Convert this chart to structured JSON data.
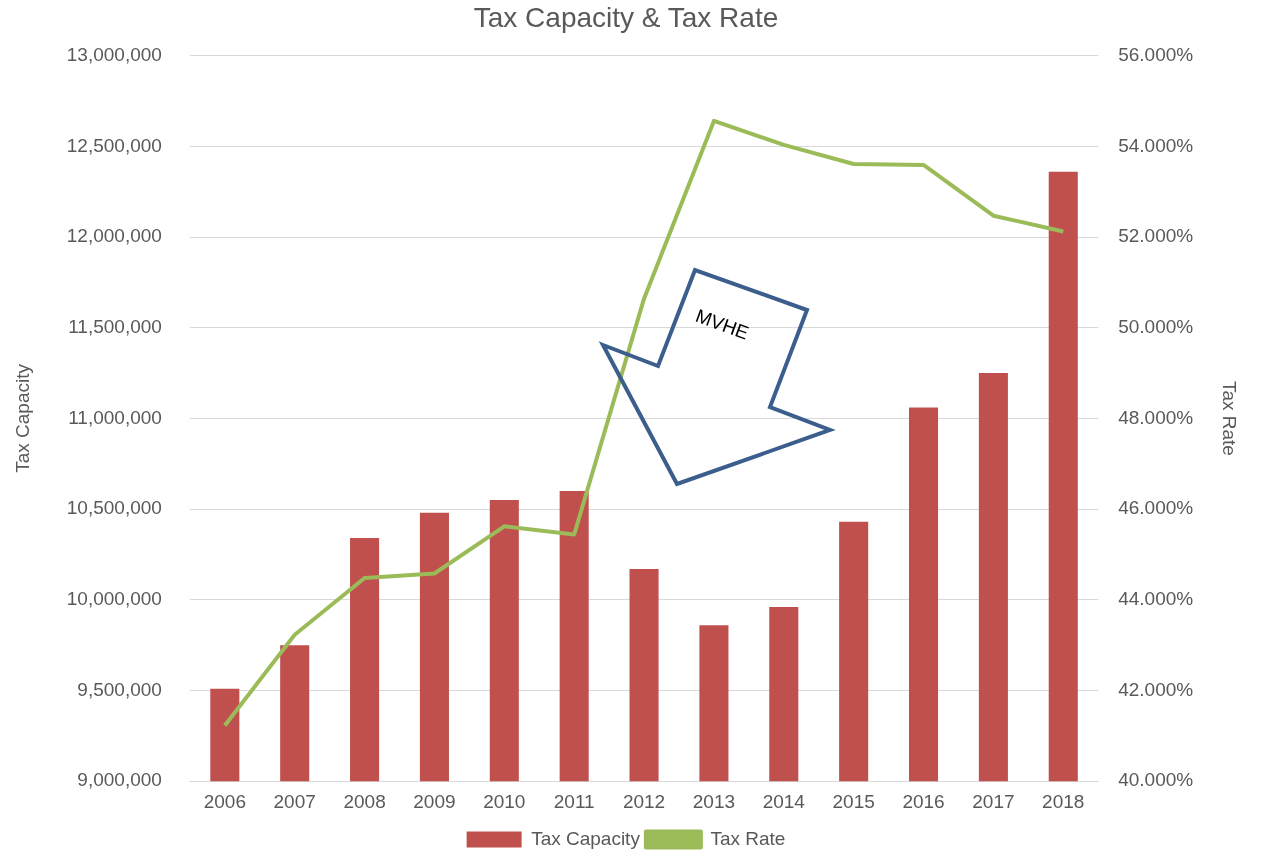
{
  "chart_data": {
    "type": "bar",
    "title": "Tax Capacity & Tax Rate",
    "ylabel": "Tax Capacity",
    "y2label": "Tax Rate",
    "categories": [
      "2006",
      "2007",
      "2008",
      "2009",
      "2010",
      "2011",
      "2012",
      "2013",
      "2014",
      "2015",
      "2016",
      "2017",
      "2018"
    ],
    "series": [
      {
        "name": "Tax Capacity",
        "color": "#c0504d",
        "values": [
          9510000,
          9750000,
          10340000,
          10480000,
          10550000,
          10600000,
          10170000,
          9860000,
          9960000,
          10430000,
          11060000,
          11250000,
          12360000
        ]
      },
      {
        "name": "Tax Rate",
        "type": "line",
        "axis": "y2",
        "color": "#9bbb59",
        "values": [
          41.23,
          43.23,
          44.48,
          44.58,
          45.62,
          45.44,
          50.64,
          54.56,
          54.03,
          53.61,
          53.59,
          52.47,
          52.12
        ]
      }
    ],
    "ylim": [
      9000000,
      13000000
    ],
    "yticks": [
      {
        "value": 9000000,
        "label": "9,000,000"
      },
      {
        "value": 9500000,
        "label": "9,500,000"
      },
      {
        "value": 10000000,
        "label": "10,000,000"
      },
      {
        "value": 10500000,
        "label": "10,500,000"
      },
      {
        "value": 11000000,
        "label": "11,000,000"
      },
      {
        "value": 11500000,
        "label": "11,500,000"
      },
      {
        "value": 12000000,
        "label": "12,000,000"
      },
      {
        "value": 12500000,
        "label": "12,500,000"
      },
      {
        "value": 13000000,
        "label": "13,000,000"
      }
    ],
    "y2lim": [
      40,
      56
    ],
    "y2ticks": [
      {
        "value": 40,
        "label": "40.000%"
      },
      {
        "value": 42,
        "label": "42.000%"
      },
      {
        "value": 44,
        "label": "44.000%"
      },
      {
        "value": 46,
        "label": "46.000%"
      },
      {
        "value": 48,
        "label": "48.000%"
      },
      {
        "value": 50,
        "label": "50.000%"
      },
      {
        "value": 52,
        "label": "52.000%"
      },
      {
        "value": 54,
        "label": "54.000%"
      },
      {
        "value": 56,
        "label": "56.000%"
      }
    ],
    "grid": "y",
    "legend": "bottom",
    "marker": "none",
    "line_style": "solid",
    "annotations": [
      "MVHE"
    ]
  }
}
